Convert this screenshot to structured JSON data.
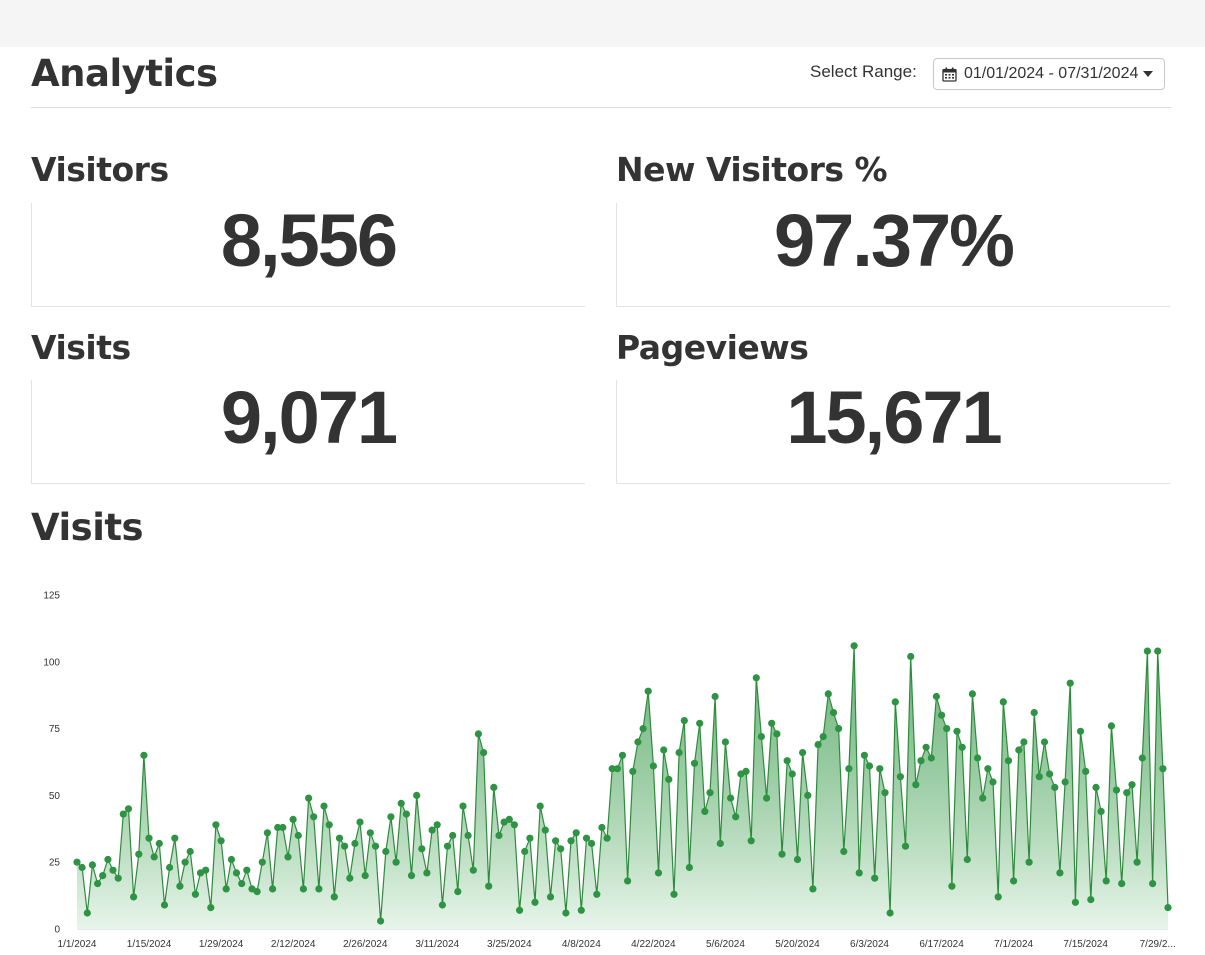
{
  "header": {
    "title": "Analytics",
    "range_label": "Select Range:",
    "range_value": "01/01/2024 - 07/31/2024"
  },
  "stats": [
    {
      "label": "Visitors",
      "value": "8,556"
    },
    {
      "label": "New Visitors %",
      "value": "97.37%"
    },
    {
      "label": "Visits",
      "value": "9,071"
    },
    {
      "label": "Pageviews",
      "value": "15,671"
    }
  ],
  "colors": {
    "line": "#2e8b3e",
    "point": "#2e9444",
    "fill_top": "#3d9c4f",
    "fill_bottom": "#e8f5ea"
  },
  "icons": {
    "range_button": "calendar-icon",
    "range_dropdown": "caret-down-icon"
  },
  "chart_title": "Visits",
  "chart_data": {
    "type": "area",
    "xlabel": "",
    "ylabel": "",
    "ylim": [
      0,
      125
    ],
    "y_ticks": [
      0,
      25,
      50,
      75,
      100,
      125
    ],
    "x_tick_labels": [
      "1/1/2024",
      "1/15/2024",
      "1/29/2024",
      "2/12/2024",
      "2/26/2024",
      "3/11/2024",
      "3/25/2024",
      "4/8/2024",
      "4/22/2024",
      "5/6/2024",
      "5/20/2024",
      "6/3/2024",
      "6/17/2024",
      "7/1/2024",
      "7/15/2024",
      "7/29/2..."
    ],
    "x_tick_step_days": 14,
    "x_start": "2024-01-01",
    "x_end": "2024-07-31",
    "series": [
      {
        "values": [
          25,
          23,
          6,
          24,
          17,
          20,
          26,
          22,
          19,
          43,
          45,
          12,
          28,
          65,
          34,
          27,
          32,
          9,
          23,
          34,
          16,
          25,
          29,
          13,
          21,
          22,
          8,
          39,
          33,
          15,
          26,
          21,
          17,
          22,
          15,
          14,
          25,
          36,
          15,
          38,
          38,
          27,
          41,
          35,
          15,
          49,
          42,
          15,
          46,
          39,
          12,
          34,
          31,
          19,
          32,
          40,
          20,
          36,
          31,
          3,
          29,
          42,
          25,
          47,
          43,
          20,
          50,
          30,
          21,
          37,
          39,
          9,
          31,
          35,
          14,
          46,
          35,
          22,
          73,
          66,
          16,
          53,
          35,
          40,
          41,
          39,
          7,
          29,
          34,
          10,
          46,
          37,
          12,
          33,
          30,
          6,
          33,
          36,
          7,
          34,
          32,
          13,
          38,
          34,
          60,
          60,
          65,
          18,
          59,
          70,
          75,
          89,
          61,
          21,
          67,
          56,
          13,
          66,
          78,
          23,
          62,
          77,
          44,
          51,
          87,
          32,
          70,
          49,
          42,
          58,
          59,
          33,
          94,
          72,
          49,
          77,
          73,
          28,
          63,
          58,
          26,
          66,
          50,
          15,
          69,
          72,
          88,
          81,
          75,
          29,
          60,
          106,
          21,
          65,
          61,
          19,
          60,
          51,
          6,
          85,
          57,
          31,
          102,
          54,
          63,
          68,
          64,
          87,
          80,
          75,
          16,
          74,
          68,
          26,
          88,
          64,
          49,
          60,
          55,
          12,
          85,
          63,
          18,
          67,
          70,
          25,
          81,
          57,
          70,
          58,
          53,
          21,
          55,
          92,
          10,
          74,
          59,
          11,
          53,
          44,
          18,
          76,
          52,
          17,
          51,
          54,
          25,
          64,
          104,
          17,
          104,
          60,
          8
        ]
      }
    ],
    "grid": false,
    "legend": "none"
  }
}
